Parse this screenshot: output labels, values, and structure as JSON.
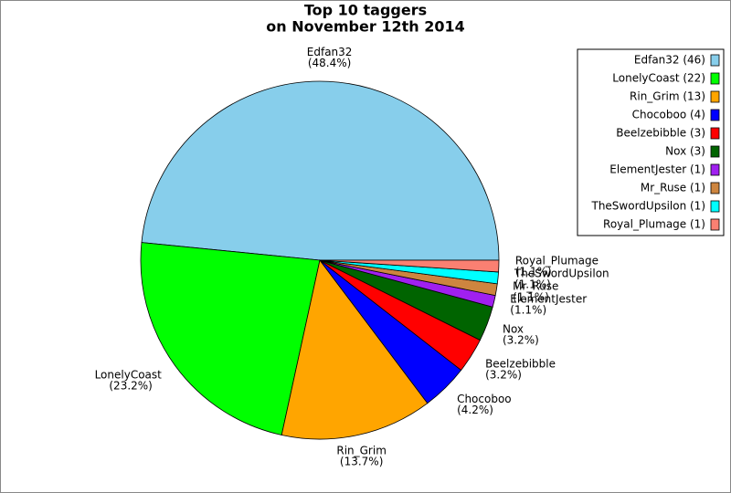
{
  "chart_data": {
    "type": "pie",
    "title": "Top 10 taggers",
    "subtitle": "on November 12th 2014",
    "categories": [
      "Edfan32",
      "LonelyCoast",
      "Rin_Grim",
      "Chocoboo",
      "Beelzebibble",
      "Nox",
      "ElementJester",
      "Mr_Ruse",
      "TheSwordUpsilon",
      "Royal_Plumage"
    ],
    "values": [
      46,
      22,
      13,
      4,
      3,
      3,
      1,
      1,
      1,
      1
    ],
    "value_labels": [
      "(48.4%)",
      "(23.2%)",
      "(13.7%)",
      "(4.2%)",
      "(3.2%)",
      "(3.2%)",
      "(1.1%)",
      "(1.1%)",
      "(1.1%)",
      "(1.1%)"
    ],
    "legend_labels": [
      "Edfan32 (46)",
      "LonelyCoast (22)",
      "Rin_Grim (13)",
      "Chocoboo (4)",
      "Beelzebibble (3)",
      "Nox (3)",
      "ElementJester (1)",
      "Mr_Ruse (1)",
      "TheSwordUpsilon (1)",
      "Royal_Plumage (1)"
    ],
    "colors": [
      "#87ceeb",
      "#00ff00",
      "#ffa500",
      "#0000ff",
      "#ff0000",
      "#006400",
      "#a020f0",
      "#cd853f",
      "#00ffff",
      "#fa8072"
    ],
    "legend_position": "upper right"
  }
}
